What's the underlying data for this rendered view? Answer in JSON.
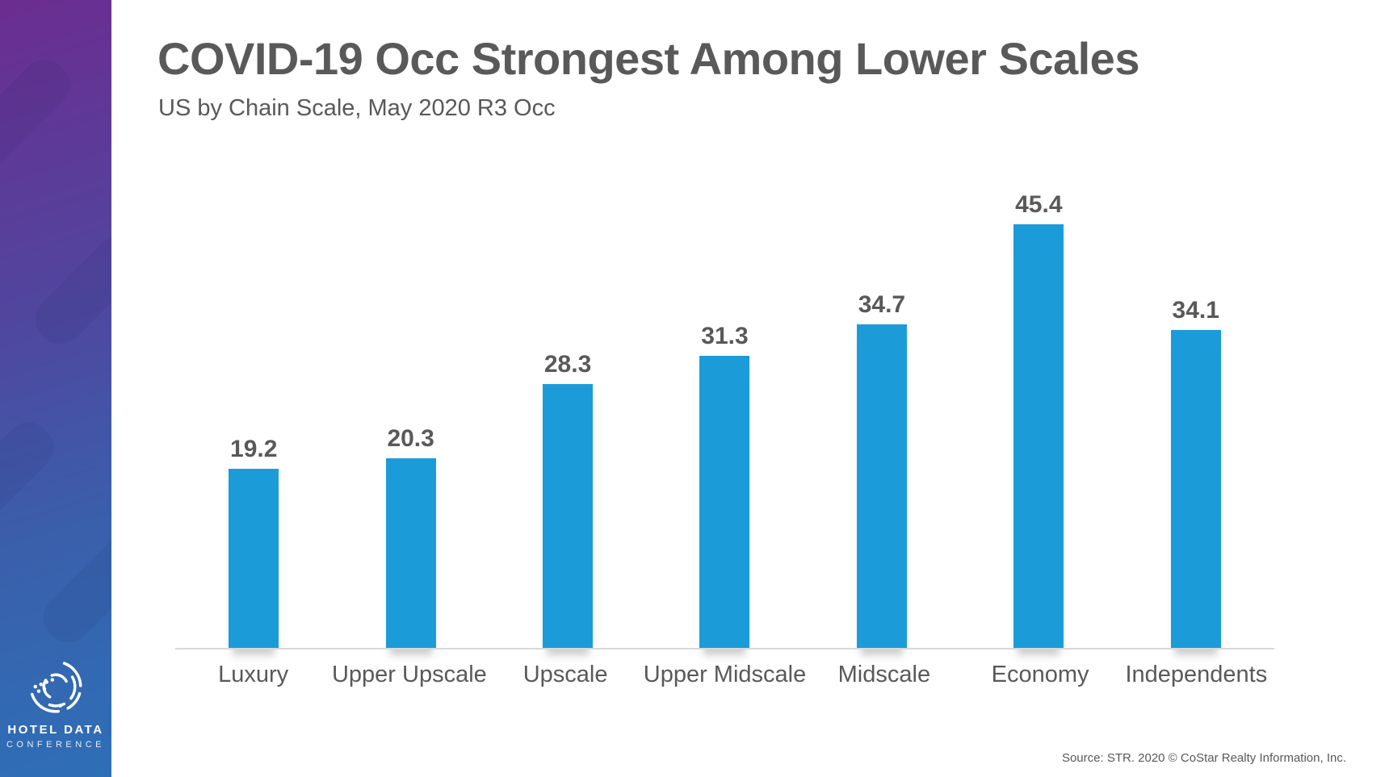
{
  "slide": {
    "title": "COVID-19 Occ Strongest Among Lower Scales",
    "subtitle": "US by Chain Scale, May 2020 R3 Occ",
    "source": "Source: STR. 2020 © CoStar Realty Information, Inc."
  },
  "sidebar": {
    "gradient_top_color": "#6b2d90",
    "gradient_bottom_color": "#2e6fb7",
    "logo": {
      "icon": "hotel-data-conference-logo",
      "line1": "HOTEL DATA",
      "line2": "CONFERENCE"
    }
  },
  "chart_data": {
    "type": "bar",
    "title": "COVID-19 Occ Strongest Among Lower Scales",
    "subtitle": "US by Chain Scale, May 2020 R3 Occ",
    "categories": [
      "Luxury",
      "Upper Upscale",
      "Upscale",
      "Upper Midscale",
      "Midscale",
      "Economy",
      "Independents"
    ],
    "values": [
      19.2,
      20.3,
      28.3,
      31.3,
      34.7,
      45.4,
      34.1
    ],
    "bar_color": "#1b9cd8",
    "value_label_color": "#595959",
    "axis_line_color": "#d9d9d9",
    "xlabel": "",
    "ylabel": "",
    "ylim": [
      0,
      50
    ],
    "grid": false,
    "legend": false,
    "value_labels_shown": true
  }
}
